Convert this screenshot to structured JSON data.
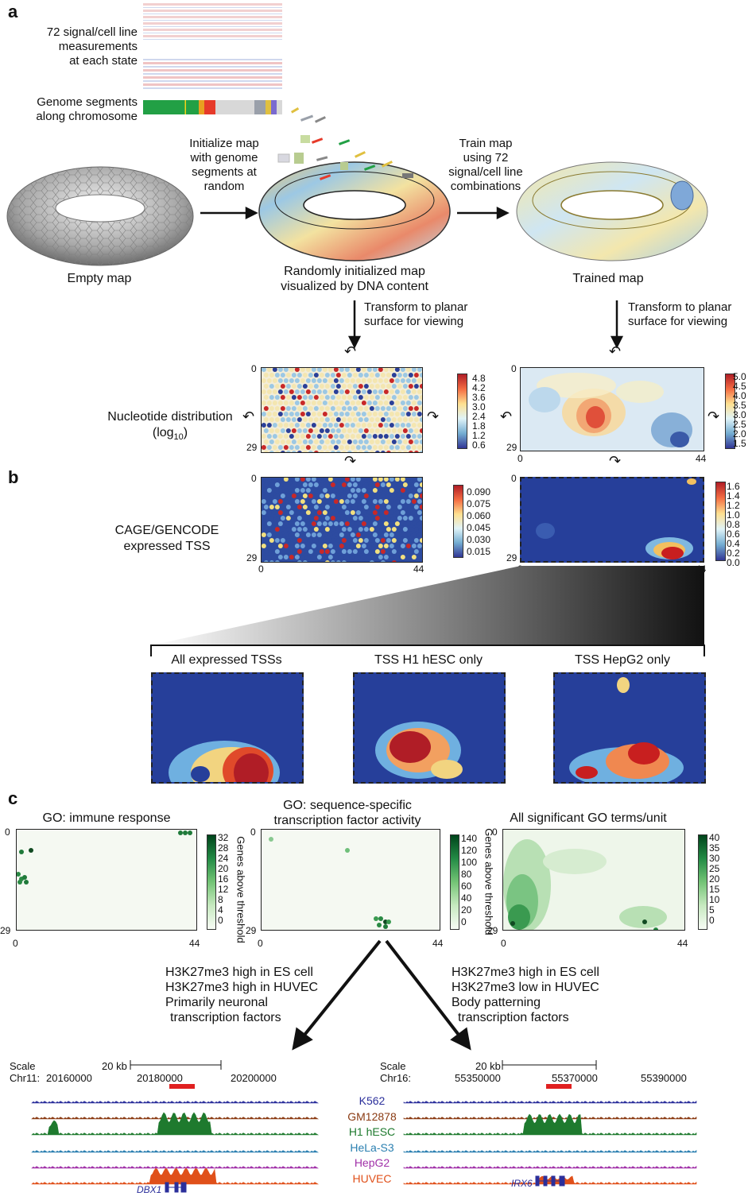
{
  "panel_a": {
    "letter": "a",
    "signal_label": [
      "72 signal/cell line",
      "measurements",
      "at each state"
    ],
    "segments_label": [
      "Genome  segments",
      "along chromosome"
    ],
    "init_label": [
      "Initialize map",
      "with genome",
      "segments at",
      "random"
    ],
    "train_label": [
      "Train map",
      "using 72",
      "signal/cell line",
      "combinations"
    ],
    "empty_map": "Empty map",
    "random_map": [
      "Randomly initialized map",
      "visualized by DNA content"
    ],
    "trained_map": "Trained map",
    "transform_left": [
      "Transform to planar",
      "surface for viewing"
    ],
    "transform_right": [
      "Transform to planar",
      "surface for viewing"
    ],
    "nucleotide_label": [
      "Nucleotide distribution",
      "(log",
      "10",
      ")"
    ],
    "cb_left": [
      "4.8",
      "4.2",
      "3.6",
      "3.0",
      "2.4",
      "1.8",
      "1.2",
      "0.6"
    ],
    "cb_right": [
      "5.0",
      "4.5",
      "4.0",
      "3.5",
      "3.0",
      "2.5",
      "2.0",
      "1.5"
    ]
  },
  "panel_b": {
    "letter": "b",
    "cage_label": [
      "CAGE/GENCODE",
      "expressed TSS"
    ],
    "cb_left": [
      "0.090",
      "0.075",
      "0.060",
      "0.045",
      "0.030",
      "0.015"
    ],
    "cb_right": [
      "1.6",
      "1.4",
      "1.2",
      "1.0",
      "0.8",
      "0.6",
      "0.4",
      "0.2",
      "0.0"
    ],
    "zoom_titles": [
      "All expressed TSSs",
      "TSS H1 hESC only",
      "TSS HepG2 only"
    ]
  },
  "axes": {
    "y_top": "0",
    "y_bottom": "29",
    "x_left": "0",
    "x_right": "44"
  },
  "panel_c": {
    "letter": "c",
    "titles": [
      "GO: immune response",
      "GO: sequence-specific",
      "transcription factor activity",
      "All significant GO terms/unit"
    ],
    "cb_label": "Genes above threshold",
    "cb1": [
      "32",
      "28",
      "24",
      "20",
      "16",
      "12",
      "8",
      "4",
      "0"
    ],
    "cb2": [
      "140",
      "120",
      "100",
      "80",
      "60",
      "40",
      "20",
      "0"
    ],
    "cb3": [
      "40",
      "35",
      "30",
      "25",
      "20",
      "15",
      "10",
      "5",
      "0"
    ],
    "left_desc": [
      "H3K27me3 high in ES cell",
      "H3K27me3 high  in HUVEC",
      "Primarily neuronal",
      "transcription factors"
    ],
    "right_desc": [
      "H3K27me3 high in ES cell",
      "H3K27me3 low in HUVEC",
      "Body patterning",
      "transcription factors"
    ],
    "left_browser": {
      "scale": "Scale",
      "chr": "Chr11:",
      "kb": "20 kb",
      "pos": [
        "20160000",
        "20180000",
        "20200000"
      ],
      "gene": "DBX1"
    },
    "right_browser": {
      "scale": "Scale",
      "chr": "Chr16:",
      "kb": "20 kb",
      "pos": [
        "55350000",
        "55370000",
        "55390000"
      ],
      "gene": "IRX6"
    },
    "cell_lines": [
      {
        "name": "K562",
        "color": "#2b2f9b"
      },
      {
        "name": "GM12878",
        "color": "#8a3a12"
      },
      {
        "name": "H1 hESC",
        "color": "#1e7a2e"
      },
      {
        "name": "HeLa-S3",
        "color": "#2a7fb0"
      },
      {
        "name": "HepG2",
        "color": "#a030a8"
      },
      {
        "name": "HUVEC",
        "color": "#e0501a"
      }
    ]
  }
}
